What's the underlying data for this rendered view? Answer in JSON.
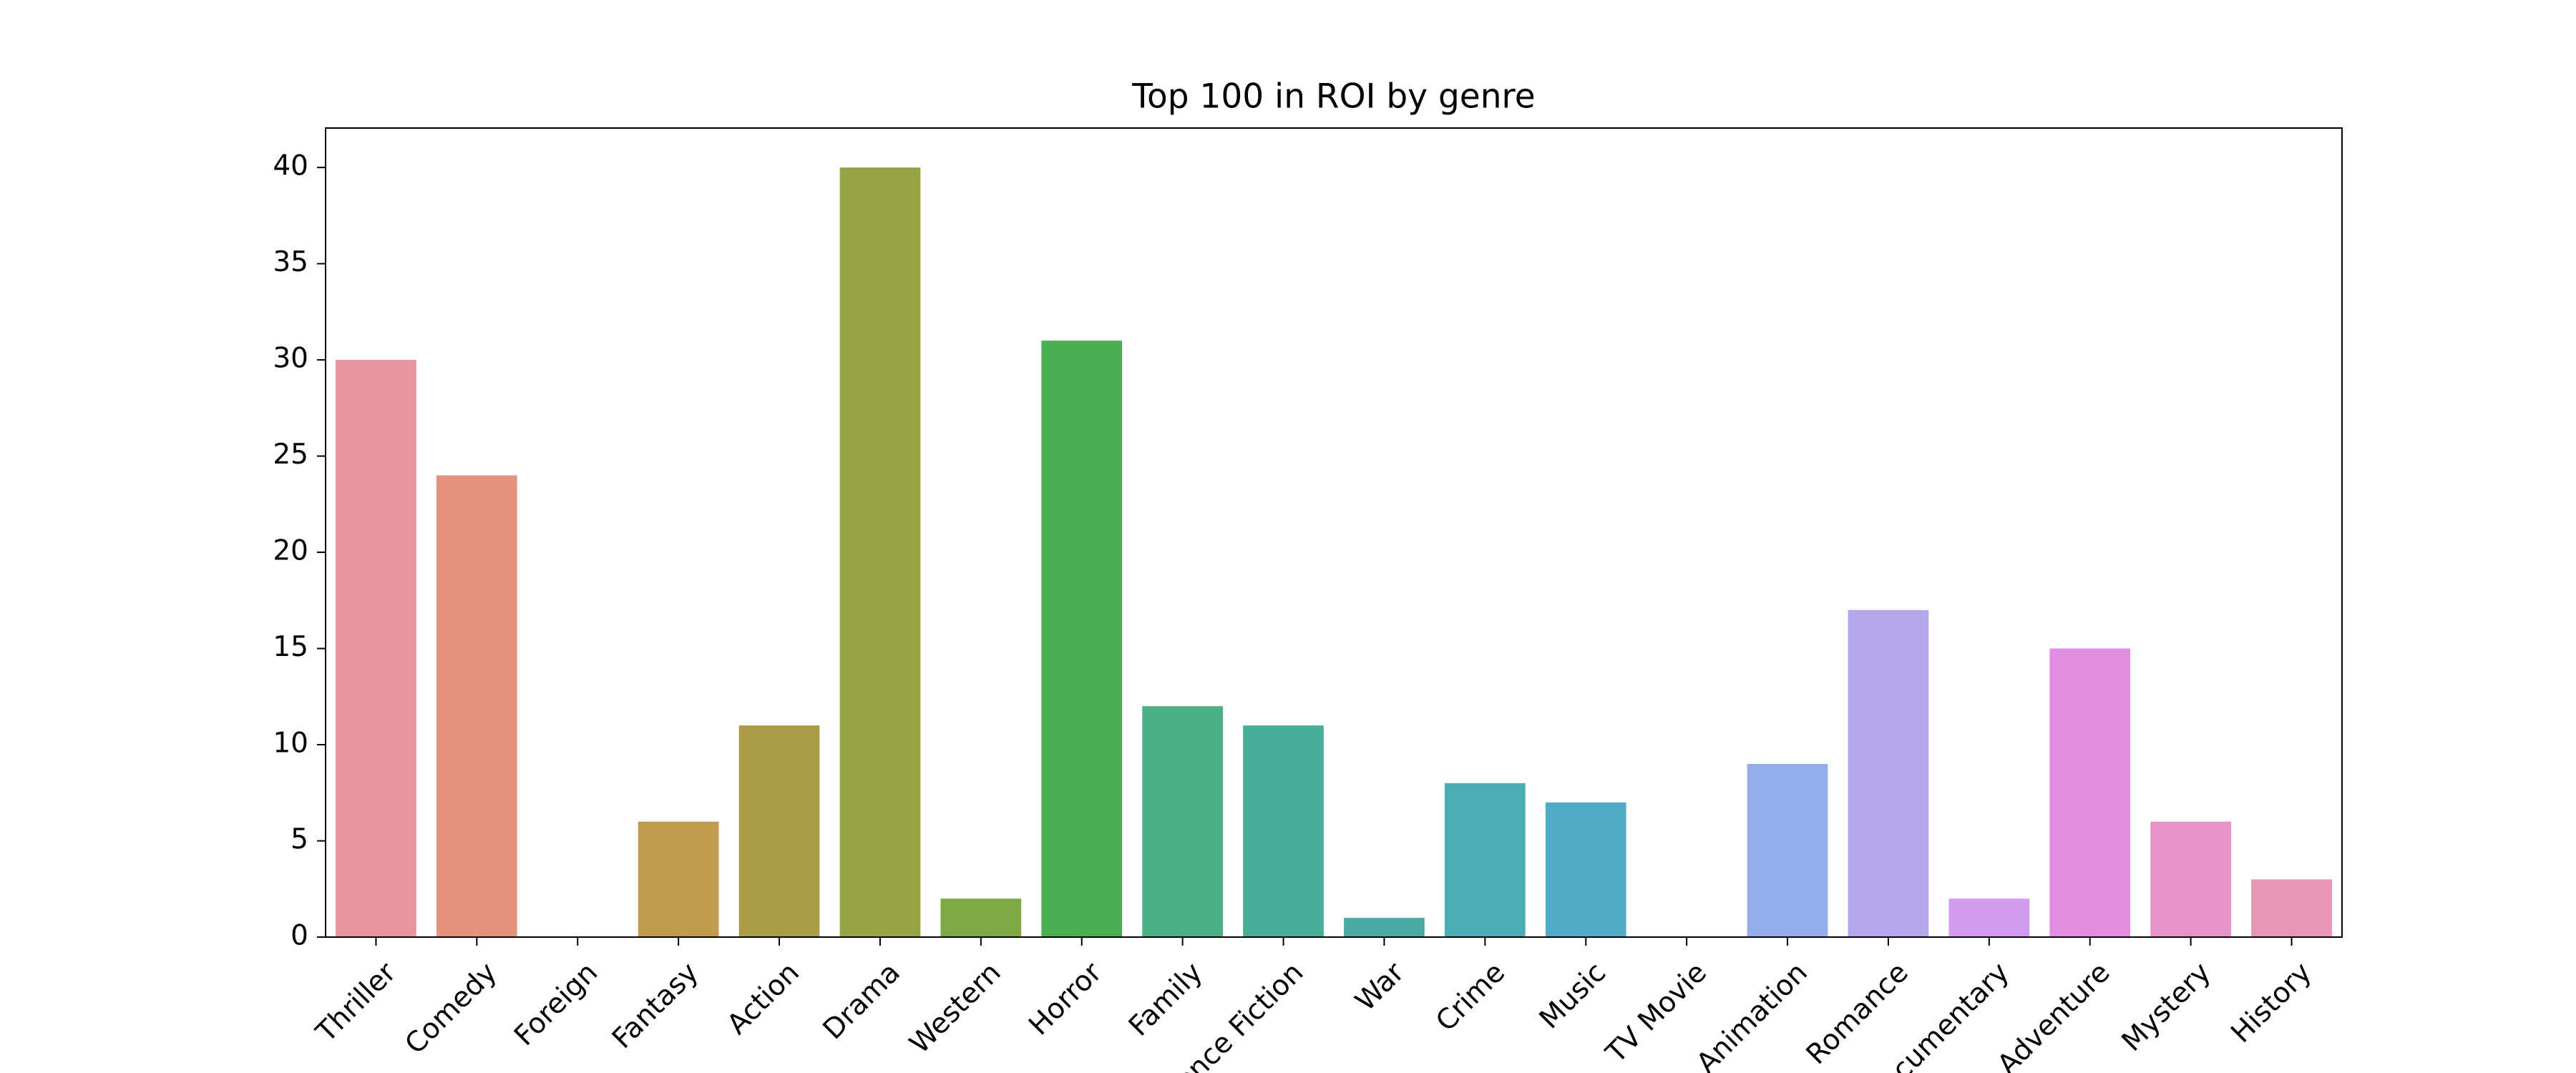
{
  "chart_data": {
    "type": "bar",
    "title": "Top 100 in ROI by genre",
    "categories": [
      "Thriller",
      "Comedy",
      "Foreign",
      "Fantasy",
      "Action",
      "Drama",
      "Western",
      "Horror",
      "Family",
      "Science Fiction",
      "War",
      "Crime",
      "Music",
      "TV Movie",
      "Animation",
      "Romance",
      "Documentary",
      "Adventure",
      "Mystery",
      "History"
    ],
    "values": [
      30,
      24,
      0,
      6,
      11,
      40,
      2,
      31,
      12,
      11,
      1,
      8,
      7,
      0,
      9,
      17,
      2,
      15,
      6,
      3
    ],
    "colors": [
      "#e8959f",
      "#e5937f",
      "#d29a63",
      "#c09a4d",
      "#aa9c48",
      "#98a444",
      "#7ea843",
      "#4aaf50",
      "#4aaf82",
      "#49ae98",
      "#4aaba4",
      "#4cacb6",
      "#52aac9",
      "#74a9dc",
      "#95adea",
      "#b6a6ec",
      "#d39bee",
      "#e48be2",
      "#e792c8",
      "#e896b8"
    ],
    "ylim": [
      0,
      42.05
    ],
    "yticks": [
      0,
      5,
      10,
      15,
      20,
      25,
      30,
      35,
      40
    ],
    "grid": false
  }
}
